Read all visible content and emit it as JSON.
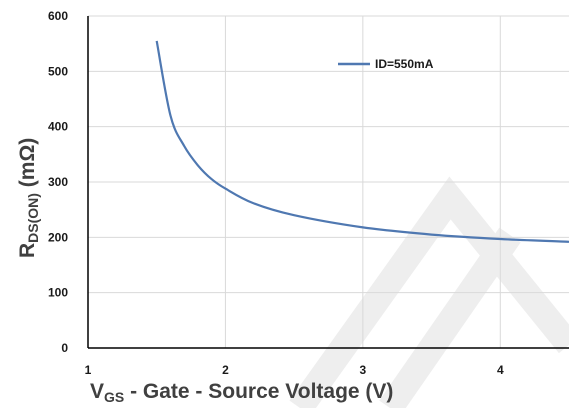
{
  "chart_data": {
    "type": "line",
    "title": "",
    "xlabel": {
      "main": "V",
      "sub": "GS",
      "rest": " - Gate - Source Voltage (V)"
    },
    "ylabel": {
      "main": "R",
      "sub": "DS(ON)",
      "rest": " (mΩ)"
    },
    "xlim": [
      1,
      4.5
    ],
    "ylim": [
      0,
      600
    ],
    "xticks": [
      1,
      2,
      3,
      4
    ],
    "yticks": [
      0,
      100,
      200,
      300,
      400,
      500,
      600
    ],
    "grid": true,
    "legend_position": "top-right",
    "series": [
      {
        "name": "ID=550mA",
        "color": "#4f78b1",
        "x": [
          1.5,
          1.6,
          1.7,
          1.8,
          1.9,
          2.0,
          2.2,
          2.5,
          3.0,
          3.5,
          4.0,
          4.5
        ],
        "y": [
          555,
          420,
          365,
          330,
          305,
          288,
          262,
          240,
          218,
          205,
          197,
          192
        ]
      }
    ]
  }
}
